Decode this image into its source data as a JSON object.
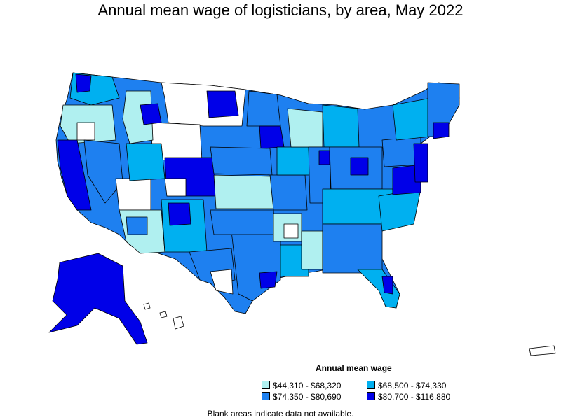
{
  "title": "Annual mean wage of logisticians, by area, May 2022",
  "legend": {
    "title": "Annual mean wage",
    "items": [
      {
        "label": "$44,310 - $68,320",
        "color": "#b0f0f0"
      },
      {
        "label": "$68,500 - $74,330",
        "color": "#00b0f0"
      },
      {
        "label": "$74,350 - $80,690",
        "color": "#1e80f0"
      },
      {
        "label": "$80,700 - $116,880",
        "color": "#0000e8"
      }
    ]
  },
  "footnote": "Blank areas indicate data not available."
}
